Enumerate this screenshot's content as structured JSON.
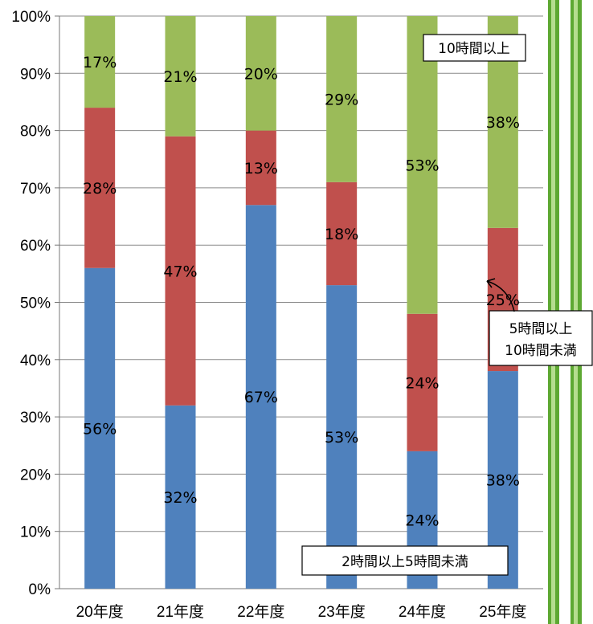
{
  "chart_data": {
    "type": "bar",
    "stacked": true,
    "categories": [
      "20年度",
      "21年度",
      "22年度",
      "23年度",
      "24年度",
      "25年度"
    ],
    "y_ticks": [
      "0%",
      "10%",
      "20%",
      "30%",
      "40%",
      "50%",
      "60%",
      "70%",
      "80%",
      "90%",
      "100%"
    ],
    "ylim": [
      0,
      100
    ],
    "grid": true,
    "series": [
      {
        "name": "2時間以上5時間未満",
        "color": "#4F81BD",
        "values": [
          56,
          32,
          67,
          53,
          24,
          38
        ],
        "labels": [
          "56%",
          "32%",
          "67%",
          "53%",
          "24%",
          "38%"
        ]
      },
      {
        "name": "5時間以上10時間未満",
        "name_lines": [
          "5時間以上",
          "10時間未満"
        ],
        "color": "#C0504D",
        "values": [
          28,
          47,
          13,
          18,
          24,
          25
        ],
        "labels": [
          "28%",
          "47%",
          "13%",
          "18%",
          "24%",
          "25%"
        ]
      },
      {
        "name": "10時間以上",
        "color": "#9BBB59",
        "values": [
          17,
          21,
          20,
          29,
          53,
          38
        ],
        "labels": [
          "17%",
          "21%",
          "20%",
          "29%",
          "53%",
          "38%"
        ]
      }
    ]
  },
  "decoration": {
    "stripe_color": "#6FB83F"
  }
}
